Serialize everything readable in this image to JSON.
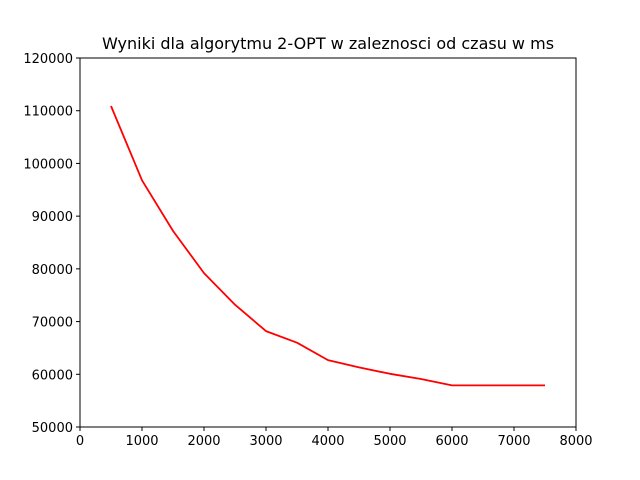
{
  "chart_data": {
    "type": "line",
    "title": "Wyniki dla algorytmu 2-OPT w zaleznosci od czasu w ms",
    "xlabel": "",
    "ylabel": "",
    "xlim": [
      0,
      8000
    ],
    "ylim": [
      50000,
      120000
    ],
    "x_ticks": [
      "0",
      "1000",
      "2000",
      "3000",
      "4000",
      "5000",
      "6000",
      "7000",
      "8000"
    ],
    "y_ticks": [
      "50000",
      "60000",
      "70000",
      "80000",
      "90000",
      "100000",
      "110000",
      "120000"
    ],
    "grid": false,
    "series": [
      {
        "color": "#ff0000",
        "x": [
          500,
          1000,
          1500,
          2000,
          2500,
          3000,
          3500,
          4000,
          4500,
          5000,
          5500,
          6000,
          6500,
          7000,
          7500
        ],
        "y": [
          110900,
          96800,
          87200,
          79200,
          73200,
          68200,
          66000,
          62700,
          61300,
          60100,
          59100,
          57900,
          57900,
          57900,
          57900
        ]
      }
    ]
  }
}
